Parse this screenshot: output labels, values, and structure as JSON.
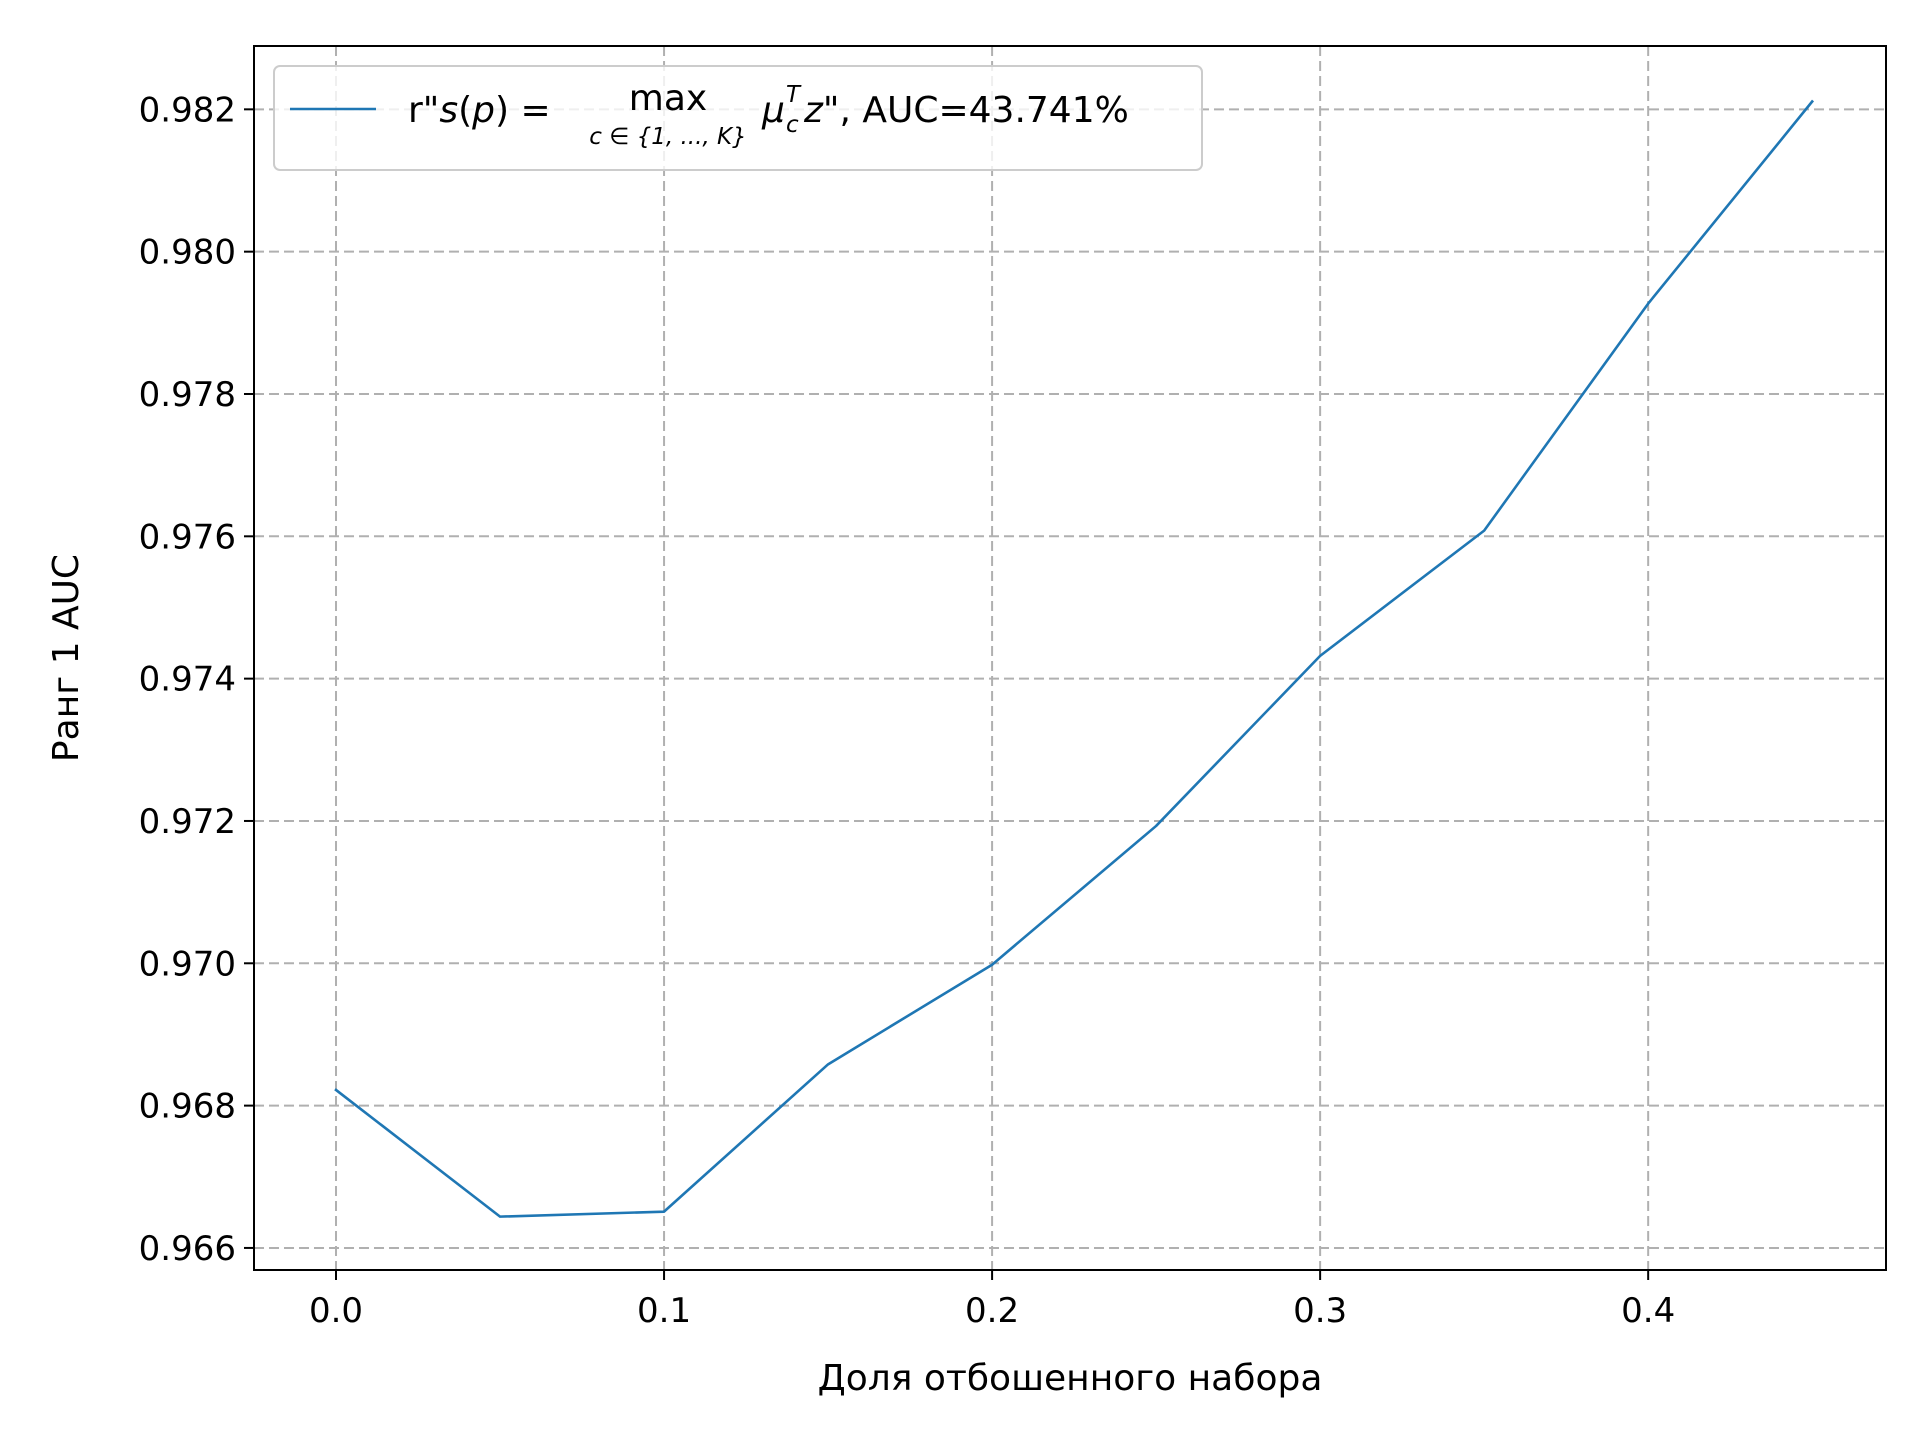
{
  "chart_data": {
    "type": "line",
    "xlabel": "Доля отбошенного набора",
    "ylabel": "Ранг 1 AUC",
    "xlim": [
      -0.025,
      0.4725
    ],
    "ylim": [
      0.96569,
      0.98289
    ],
    "x_ticks": [
      0.0,
      0.1,
      0.2,
      0.3,
      0.4
    ],
    "x_tick_labels": [
      "0.0",
      "0.1",
      "0.2",
      "0.3",
      "0.4"
    ],
    "y_ticks": [
      0.966,
      0.968,
      0.97,
      0.972,
      0.974,
      0.976,
      0.978,
      0.98,
      0.982
    ],
    "y_tick_labels": [
      "0.966",
      "0.968",
      "0.970",
      "0.972",
      "0.974",
      "0.976",
      "0.978",
      "0.980",
      "0.982"
    ],
    "grid": true,
    "grid_style": "dashed",
    "legend_position": "top-left",
    "series": [
      {
        "name": "r\"s(p) = max_{c ∈ {1, ..., K}} μ_c^T z\", AUC=43.741%",
        "legend_parts": {
          "prefix": "r\"",
          "s": "s",
          "p_open": "(",
          "p": "p",
          "p_close": ") =",
          "max": "max",
          "subscript": "c ∈ {1, ..., K}",
          "mu": "μ",
          "mu_sub": "c",
          "mu_sup": "T",
          "z": "z",
          "suffix": "\", AUC=43.741%"
        },
        "color": "#1f77b4",
        "x": [
          0.0,
          0.05,
          0.1,
          0.15,
          0.2,
          0.25,
          0.3,
          0.35,
          0.4,
          0.45
        ],
        "y": [
          0.96822,
          0.96644,
          0.96651,
          0.96858,
          0.96998,
          0.97193,
          0.97432,
          0.97608,
          0.97927,
          0.98211
        ]
      }
    ]
  }
}
